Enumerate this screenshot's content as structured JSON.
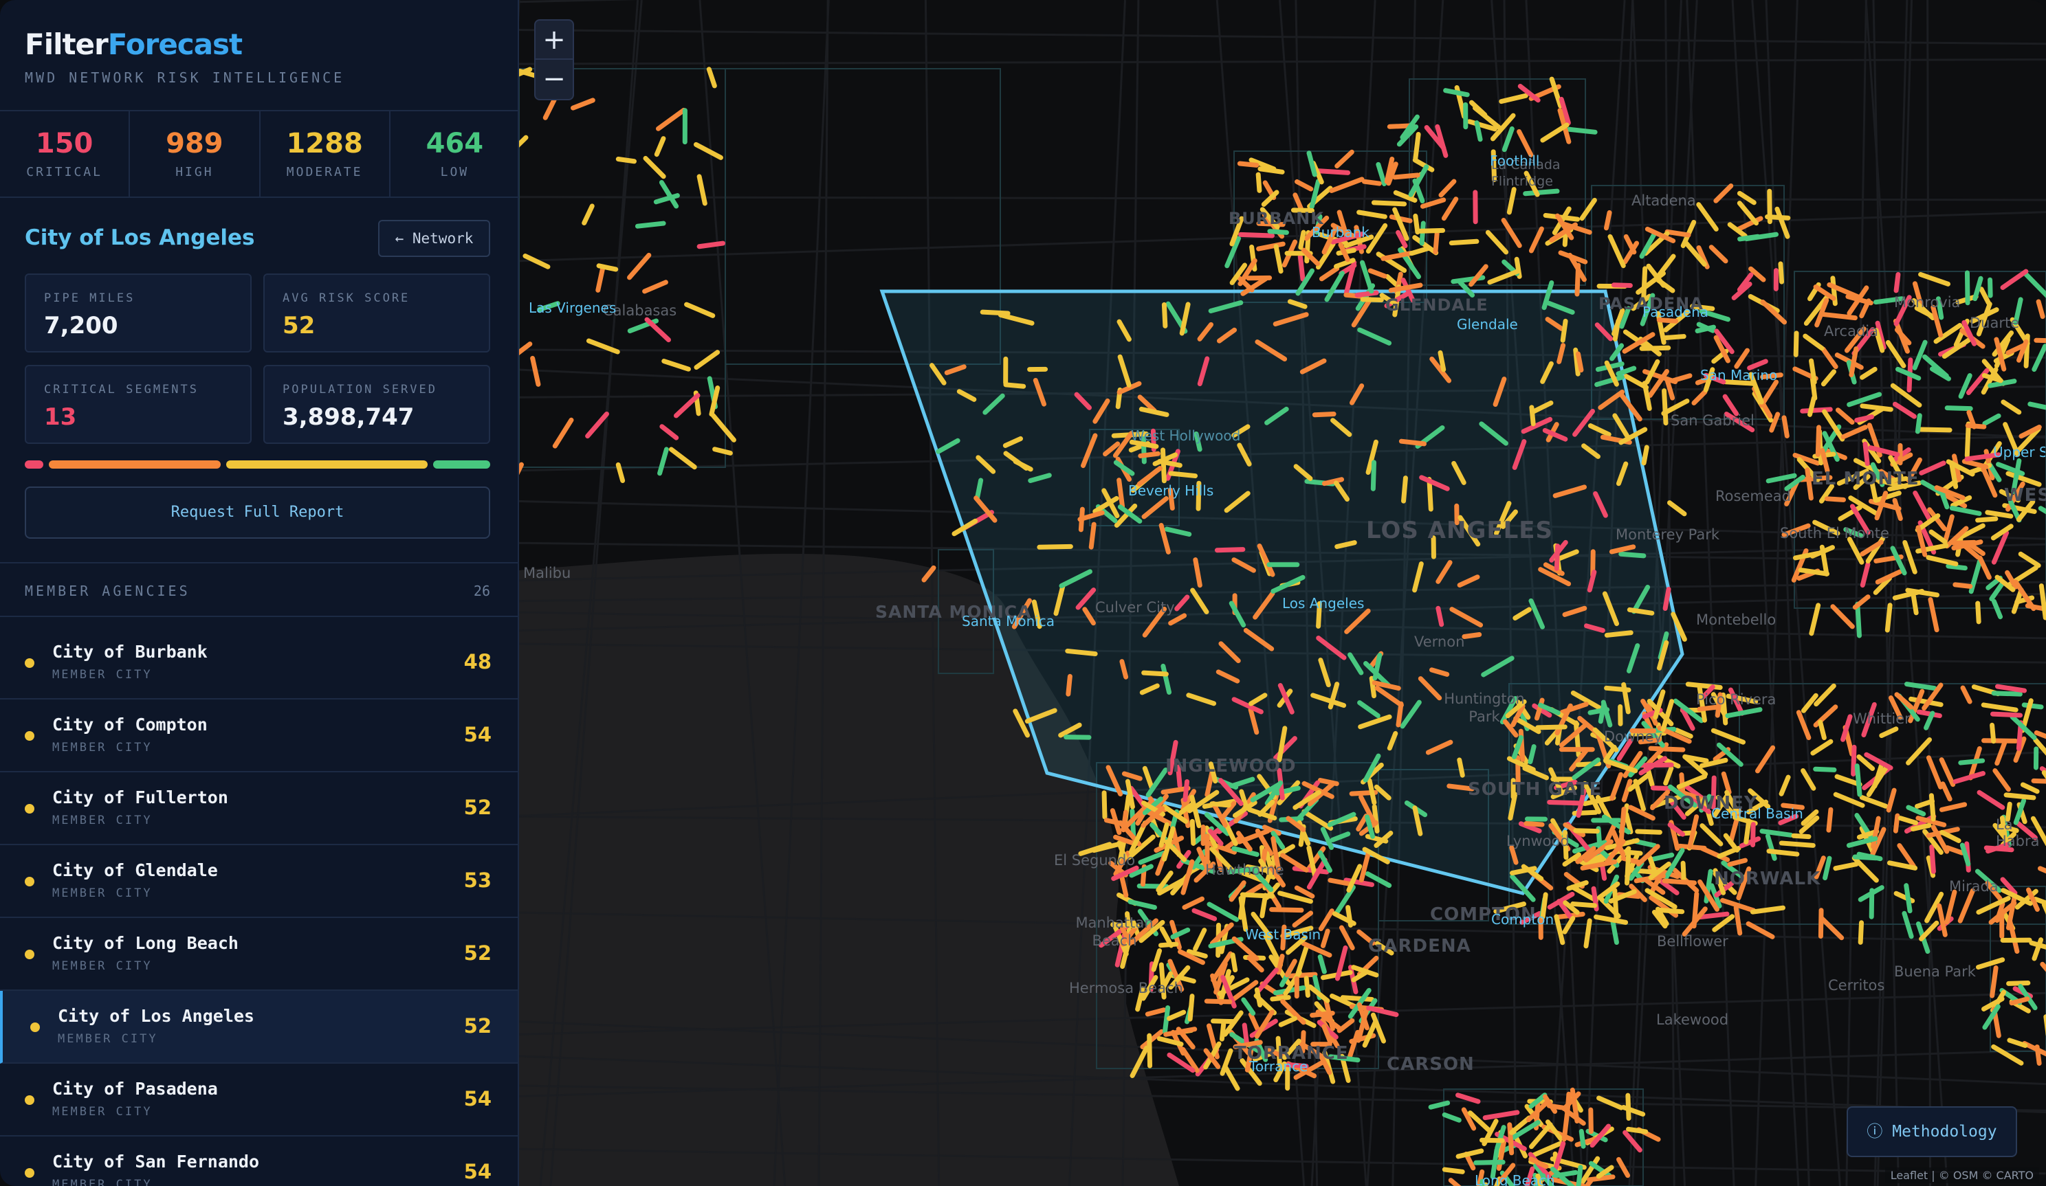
{
  "brand": {
    "part1": "Filter",
    "part2": "Forecast",
    "tagline": "MWD NETWORK RISK INTELLIGENCE"
  },
  "stats": [
    {
      "value": "150",
      "label": "CRITICAL"
    },
    {
      "value": "989",
      "label": "HIGH"
    },
    {
      "value": "1288",
      "label": "MODERATE"
    },
    {
      "value": "464",
      "label": "LOW"
    }
  ],
  "agency": {
    "title": "City of Los Angeles",
    "back_label": "← Network",
    "pipe_miles_label": "PIPE MILES",
    "pipe_miles": "7,200",
    "avg_risk_label": "AVG RISK SCORE",
    "avg_risk": "52",
    "critical_label": "CRITICAL SEGMENTS",
    "critical": "13",
    "population_label": "POPULATION SERVED",
    "population": "3,898,747",
    "report_label": "Request Full Report"
  },
  "colors": {
    "critical": "#f04a6a",
    "high": "#f5873a",
    "moderate": "#f0c53a",
    "low": "#48c77f",
    "accent": "#5fc3ef"
  },
  "risk_mix": {
    "critical": 13,
    "high": 120,
    "moderate": 140,
    "low": 40
  },
  "members": {
    "heading": "MEMBER AGENCIES",
    "count": "26",
    "items": [
      {
        "name": "City of Burbank",
        "type": "MEMBER CITY",
        "score": "48"
      },
      {
        "name": "City of Compton",
        "type": "MEMBER CITY",
        "score": "54"
      },
      {
        "name": "City of Fullerton",
        "type": "MEMBER CITY",
        "score": "52"
      },
      {
        "name": "City of Glendale",
        "type": "MEMBER CITY",
        "score": "53"
      },
      {
        "name": "City of Long Beach",
        "type": "MEMBER CITY",
        "score": "52"
      },
      {
        "name": "City of Los Angeles",
        "type": "MEMBER CITY",
        "score": "52"
      },
      {
        "name": "City of Pasadena",
        "type": "MEMBER CITY",
        "score": "54"
      },
      {
        "name": "City of San Fernando",
        "type": "MEMBER CITY",
        "score": "54"
      }
    ]
  },
  "map": {
    "zoom_in": "+",
    "zoom_out": "−",
    "methodology_label": "ⓘ Methodology",
    "attribution": "Leaflet | © OSM © CARTO",
    "basemap_labels": [
      "LOS ANGELES",
      "GLENDALE",
      "PASADENA",
      "INGLEWOOD",
      "COMPTON",
      "CARSON",
      "SANTA MONICA",
      "SOUTH GATE",
      "DOWNEY",
      "NORWALK",
      "EL MONTE",
      "WEST",
      "GARDENA",
      "TORRANCE",
      "BURBANK"
    ],
    "gray_labels": [
      "Calabasas",
      "Malibu",
      "La Cañada Flintridge",
      "Altadena",
      "San Gabriel",
      "Rosemead",
      "Monterey Park",
      "South El Monte",
      "Montebello",
      "Vernon",
      "Culver City",
      "Huntington Park",
      "Pico Rivera",
      "Whittier",
      "El Segundo",
      "Hawthorne",
      "Manhattan Beach",
      "Hermosa Beach",
      "Bellflower",
      "Lakewood",
      "Cerritos",
      "Buena Park",
      "La Habra",
      "Mirada",
      "Lynwood",
      "Downey",
      "Monrovia",
      "Duarte",
      "Arcadia"
    ],
    "city_labels": [
      "Foothill",
      "Burbank",
      "Glendale",
      "Pasadena",
      "San Marino",
      "Las Virgenes",
      "West Hollywood",
      "Beverly Hills",
      "Los Angeles",
      "Santa Monica",
      "Central Basin",
      "West Basin",
      "Compton",
      "Torrance",
      "Long Beach",
      "Upper San Gabriel"
    ]
  }
}
